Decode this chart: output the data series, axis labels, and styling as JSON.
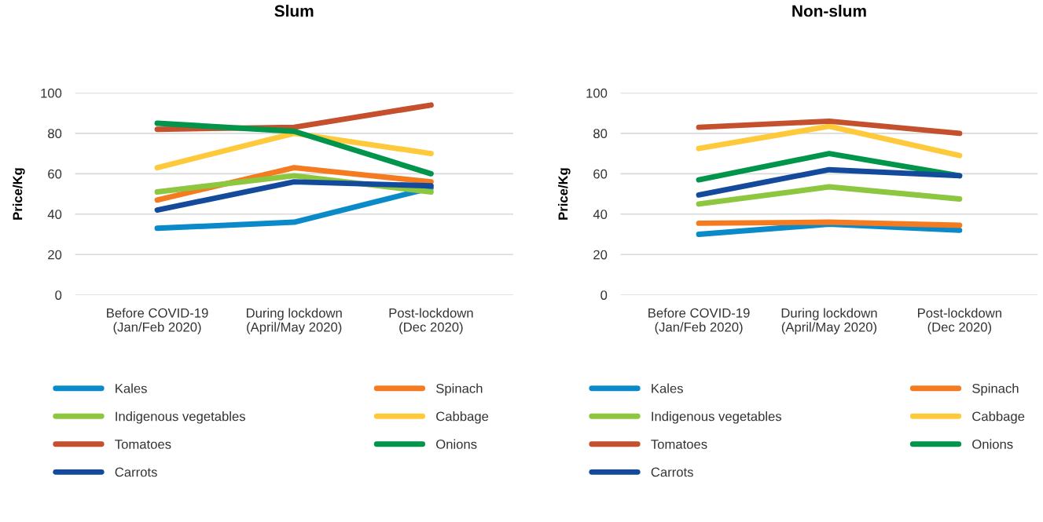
{
  "chart_data": [
    {
      "type": "line",
      "title": "Slum",
      "ylabel": "Price/Kg",
      "categories": [
        "Before COVID-19\n(Jan/Feb 2020)",
        "During lockdown\n(April/May 2020)",
        "Post-lockdown\n(Dec 2020)"
      ],
      "ylim": [
        0,
        100
      ],
      "yticks": [
        0,
        20,
        40,
        60,
        80,
        100
      ],
      "grid": "y",
      "legend": "bottom",
      "marker": "none",
      "line_style": "solid",
      "series": [
        {
          "name": "Kales",
          "color": "#0a8ac9",
          "values": [
            33,
            36,
            53
          ]
        },
        {
          "name": "Spinach",
          "color": "#f47b20",
          "values": [
            47,
            63,
            56
          ]
        },
        {
          "name": "Indigenous vegetables",
          "color": "#8dc63f",
          "values": [
            51,
            59,
            51
          ]
        },
        {
          "name": "Cabbage",
          "color": "#ffc93c",
          "values": [
            63,
            80,
            70
          ]
        },
        {
          "name": "Tomatoes",
          "color": "#c5502e",
          "values": [
            82,
            83,
            94
          ]
        },
        {
          "name": "Onions",
          "color": "#00954a",
          "values": [
            85,
            81,
            60
          ]
        },
        {
          "name": "Carrots",
          "color": "#144a9c",
          "values": [
            42,
            56,
            54
          ]
        }
      ]
    },
    {
      "type": "line",
      "title": "Non-slum",
      "ylabel": "Price/Kg",
      "categories": [
        "Before COVID-19\n(Jan/Feb 2020)",
        "During lockdown\n(April/May 2020)",
        "Post-lockdown\n(Dec 2020)"
      ],
      "ylim": [
        0,
        100
      ],
      "yticks": [
        0,
        20,
        40,
        60,
        80,
        100
      ],
      "grid": "y",
      "legend": "bottom",
      "marker": "none",
      "line_style": "solid",
      "series": [
        {
          "name": "Kales",
          "color": "#0a8ac9",
          "values": [
            30,
            35,
            32
          ]
        },
        {
          "name": "Spinach",
          "color": "#f47b20",
          "values": [
            35.5,
            36,
            34.5
          ]
        },
        {
          "name": "Indigenous vegetables",
          "color": "#8dc63f",
          "values": [
            45,
            53.5,
            47.5
          ]
        },
        {
          "name": "Cabbage",
          "color": "#ffc93c",
          "values": [
            72.5,
            83.5,
            69
          ]
        },
        {
          "name": "Tomatoes",
          "color": "#c5502e",
          "values": [
            83,
            86,
            80
          ]
        },
        {
          "name": "Onions",
          "color": "#00954a",
          "values": [
            57,
            70,
            59
          ]
        },
        {
          "name": "Carrots",
          "color": "#144a9c",
          "values": [
            49.5,
            62,
            59
          ]
        }
      ]
    }
  ]
}
